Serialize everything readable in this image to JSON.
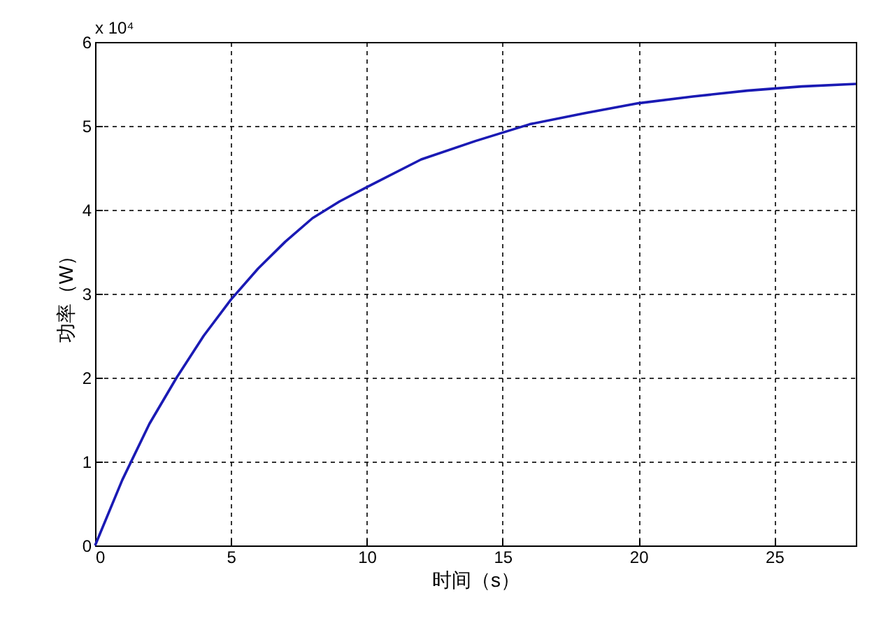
{
  "chart_data": {
    "type": "line",
    "xlabel": "时间（s）",
    "ylabel": "功率（W）",
    "annotations": [
      "x 10⁴"
    ],
    "x": [
      0,
      1,
      2,
      3,
      4,
      5,
      6,
      7,
      8,
      9,
      10,
      12,
      14,
      16,
      18,
      20,
      22,
      24,
      26,
      28
    ],
    "series": [
      {
        "color": "#1a1ab4",
        "values": [
          0,
          0.78,
          1.45,
          2.0,
          2.5,
          2.93,
          3.3,
          3.62,
          3.9,
          4.1,
          4.27,
          4.6,
          4.82,
          5.02,
          5.15,
          5.27,
          5.35,
          5.42,
          5.47,
          5.5
        ]
      }
    ],
    "xlim": [
      0,
      28
    ],
    "xticks": [
      0,
      5,
      10,
      15,
      20,
      25
    ],
    "ylim": [
      0,
      6
    ],
    "yticks": [
      0,
      1,
      2,
      3,
      4,
      5,
      6
    ],
    "grid": true,
    "line_style": "solid",
    "marker": "none"
  }
}
